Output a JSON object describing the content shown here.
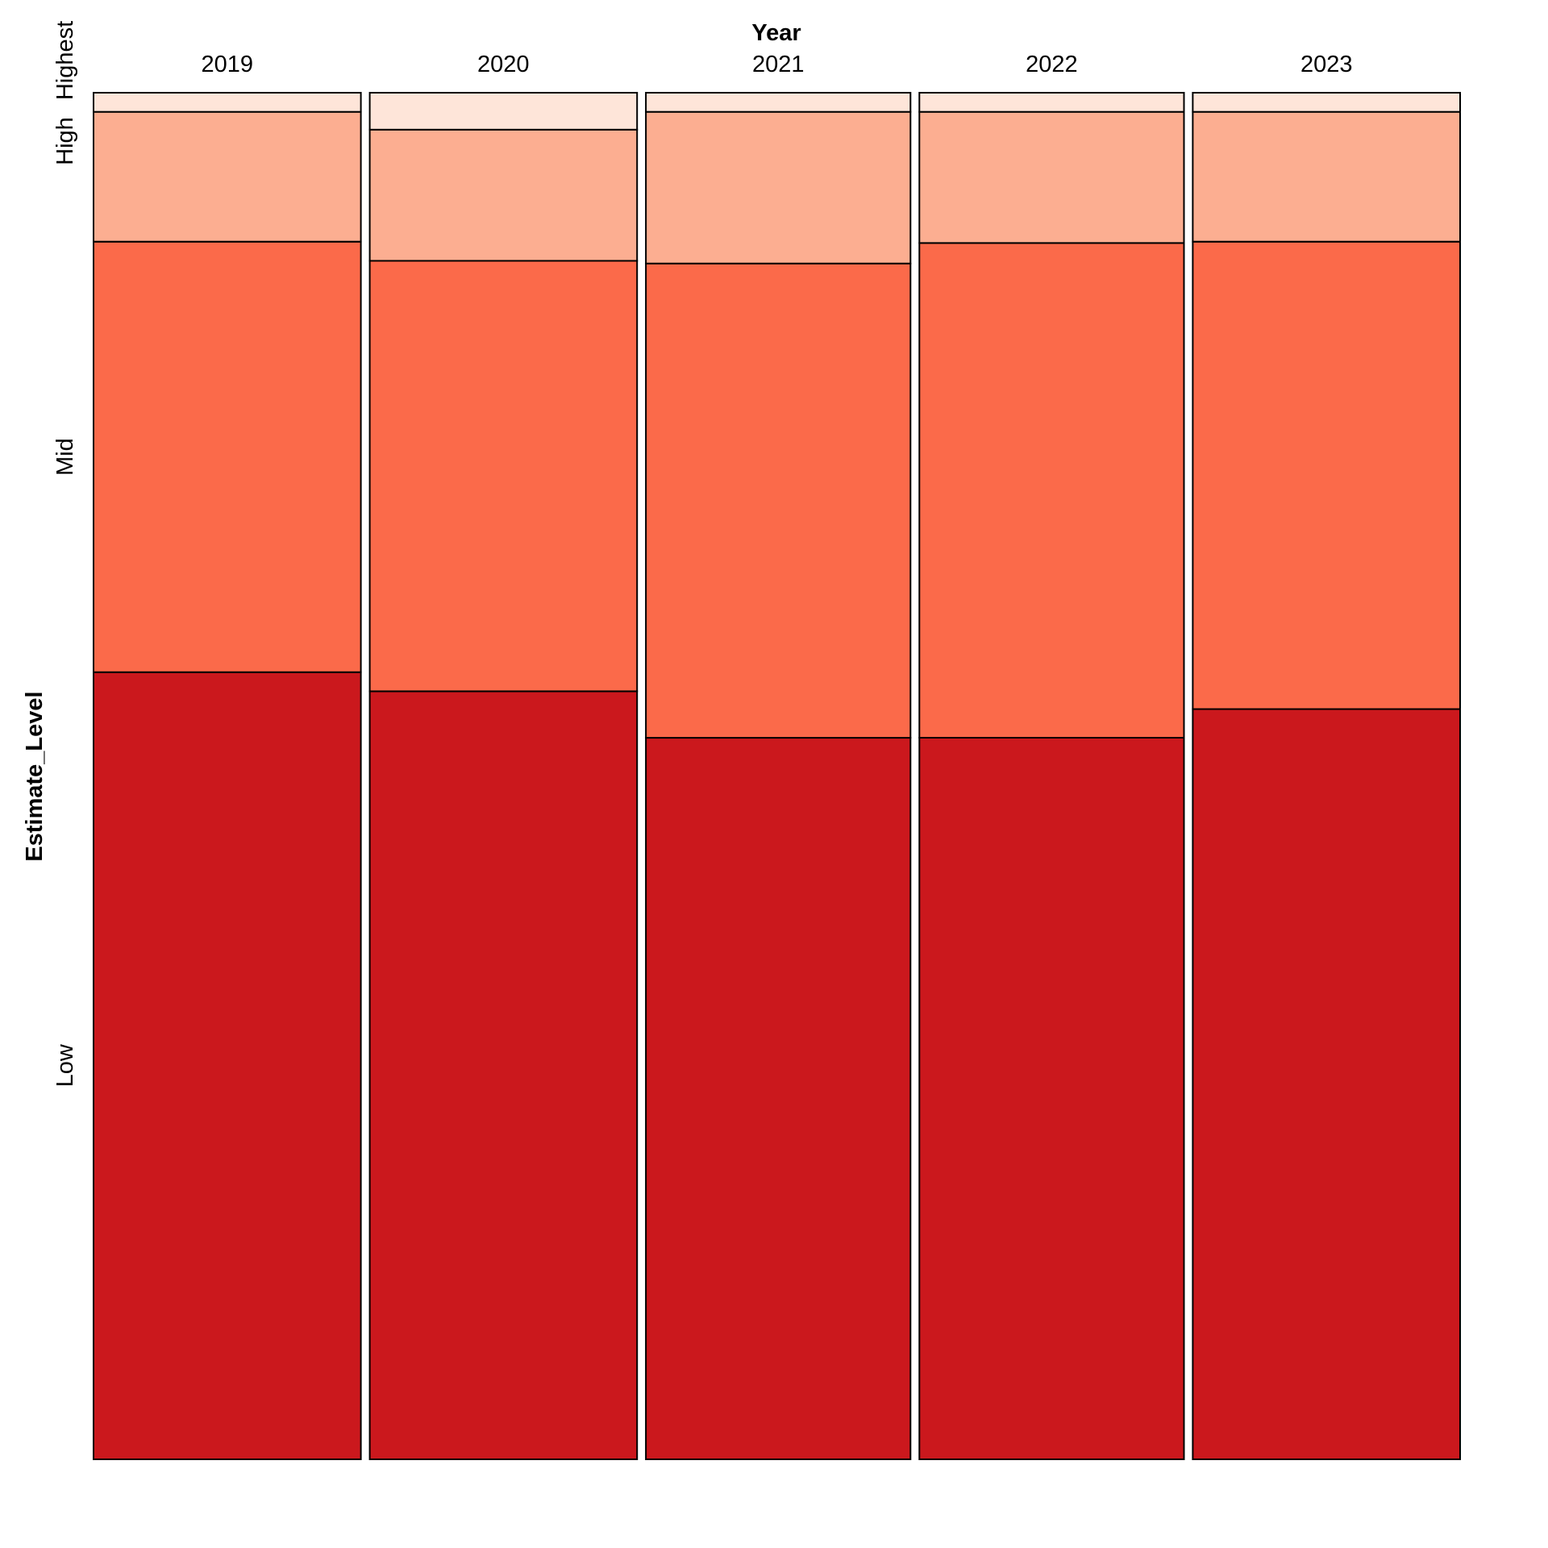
{
  "chart_data": {
    "type": "mosaic",
    "xlabel": "Year",
    "ylabel": "Estimate_Level",
    "x_categories": [
      "2019",
      "2020",
      "2021",
      "2022",
      "2023"
    ],
    "x_widths": [
      0.195,
      0.195,
      0.193,
      0.193,
      0.195
    ],
    "levels": [
      "Low",
      "Mid",
      "High",
      "Highest"
    ],
    "level_tick_labels": [
      {
        "level": "Low",
        "label": "Low"
      },
      {
        "level": "Mid",
        "label": "Mid"
      },
      {
        "level": "High",
        "label": "High"
      },
      {
        "level": "Highest",
        "label": "Highest"
      }
    ],
    "colors": {
      "Low": "#CB181D",
      "Mid": "#FB6A4A",
      "High": "#FCAE91",
      "Highest": "#FEE5D9"
    },
    "columns": [
      {
        "year": "2019",
        "proportions": [
          0.576,
          0.315,
          0.095,
          0.014
        ]
      },
      {
        "year": "2020",
        "proportions": [
          0.562,
          0.315,
          0.096,
          0.027
        ]
      },
      {
        "year": "2021",
        "proportions": [
          0.528,
          0.347,
          0.111,
          0.014
        ]
      },
      {
        "year": "2022",
        "proportions": [
          0.528,
          0.362,
          0.096,
          0.014
        ]
      },
      {
        "year": "2023",
        "proportions": [
          0.549,
          0.342,
          0.095,
          0.014
        ]
      }
    ]
  }
}
